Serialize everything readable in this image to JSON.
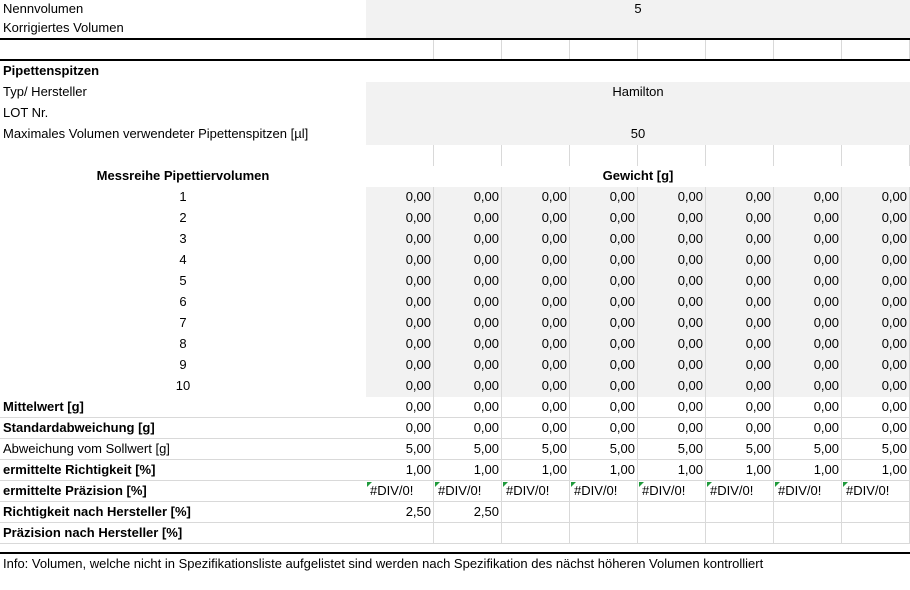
{
  "sheet": {
    "nennvolumen_label": "Nennvolumen",
    "nennvolumen_value": "5",
    "korrigiertes_label": "Korrigiertes Volumen",
    "pipettenspitzen_label": "Pipettenspitzen",
    "typ_label": "Typ/ Hersteller",
    "typ_value": "Hamilton",
    "lot_label": "LOT Nr.",
    "maxvol_label": "Maximales Volumen verwendeter Pipettenspitzen [µl]",
    "maxvol_value": "50",
    "messreihe_label": "Messreihe Pipettiervolumen",
    "gewicht_label": "Gewicht [g]",
    "measurements": [
      {
        "label": "1",
        "values": [
          "0,00",
          "0,00",
          "0,00",
          "0,00",
          "0,00",
          "0,00",
          "0,00",
          "0,00"
        ]
      },
      {
        "label": "2",
        "values": [
          "0,00",
          "0,00",
          "0,00",
          "0,00",
          "0,00",
          "0,00",
          "0,00",
          "0,00"
        ]
      },
      {
        "label": "3",
        "values": [
          "0,00",
          "0,00",
          "0,00",
          "0,00",
          "0,00",
          "0,00",
          "0,00",
          "0,00"
        ]
      },
      {
        "label": "4",
        "values": [
          "0,00",
          "0,00",
          "0,00",
          "0,00",
          "0,00",
          "0,00",
          "0,00",
          "0,00"
        ]
      },
      {
        "label": "5",
        "values": [
          "0,00",
          "0,00",
          "0,00",
          "0,00",
          "0,00",
          "0,00",
          "0,00",
          "0,00"
        ]
      },
      {
        "label": "6",
        "values": [
          "0,00",
          "0,00",
          "0,00",
          "0,00",
          "0,00",
          "0,00",
          "0,00",
          "0,00"
        ]
      },
      {
        "label": "7",
        "values": [
          "0,00",
          "0,00",
          "0,00",
          "0,00",
          "0,00",
          "0,00",
          "0,00",
          "0,00"
        ]
      },
      {
        "label": "8",
        "values": [
          "0,00",
          "0,00",
          "0,00",
          "0,00",
          "0,00",
          "0,00",
          "0,00",
          "0,00"
        ]
      },
      {
        "label": "9",
        "values": [
          "0,00",
          "0,00",
          "0,00",
          "0,00",
          "0,00",
          "0,00",
          "0,00",
          "0,00"
        ]
      },
      {
        "label": "10",
        "values": [
          "0,00",
          "0,00",
          "0,00",
          "0,00",
          "0,00",
          "0,00",
          "0,00",
          "0,00"
        ]
      }
    ],
    "stats": [
      {
        "label": "Mittelwert [g]",
        "bold": true,
        "values": [
          "0,00",
          "0,00",
          "0,00",
          "0,00",
          "0,00",
          "0,00",
          "0,00",
          "0,00"
        ]
      },
      {
        "label": "Standardabweichung [g]",
        "bold": true,
        "values": [
          "0,00",
          "0,00",
          "0,00",
          "0,00",
          "0,00",
          "0,00",
          "0,00",
          "0,00"
        ]
      },
      {
        "label": "Abweichung vom Sollwert [g]",
        "bold": false,
        "values": [
          "5,00",
          "5,00",
          "5,00",
          "5,00",
          "5,00",
          "5,00",
          "5,00",
          "5,00"
        ]
      },
      {
        "label": "ermittelte Richtigkeit [%]",
        "bold": true,
        "values": [
          "1,00",
          "1,00",
          "1,00",
          "1,00",
          "1,00",
          "1,00",
          "1,00",
          "1,00"
        ]
      },
      {
        "label": "ermittelte Präzision [%]",
        "bold": true,
        "error": true,
        "values": [
          "#DIV/0!",
          "#DIV/0!",
          "#DIV/0!",
          "#DIV/0!",
          "#DIV/0!",
          "#DIV/0!",
          "#DIV/0!",
          "#DIV/0!"
        ]
      },
      {
        "label": "Richtigkeit nach Hersteller [%]",
        "bold": true,
        "values": [
          "2,50",
          "2,50",
          "",
          "",
          "",
          "",
          "",
          ""
        ]
      },
      {
        "label": "Präzision nach Hersteller [%]",
        "bold": true,
        "values": [
          "",
          "",
          "",
          "",
          "",
          "",
          "",
          ""
        ]
      }
    ],
    "info": "Info: Volumen, welche nicht in Spezifikationsliste aufgelistet sind werden nach Spezifikation des nächst höheren Volumen kontrolliert",
    "colors": {
      "shade": "#f2f2f2",
      "error_marker": "#1f9a3c",
      "grid": "#d9d9d9"
    }
  }
}
